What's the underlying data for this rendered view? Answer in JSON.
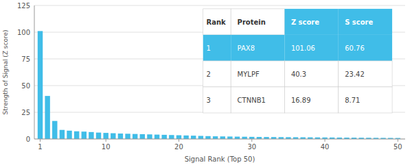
{
  "chart_data": {
    "type": "bar",
    "x": [
      1,
      2,
      3,
      4,
      5,
      6,
      7,
      8,
      9,
      10,
      11,
      12,
      13,
      14,
      15,
      16,
      17,
      18,
      19,
      20,
      21,
      22,
      23,
      24,
      25,
      26,
      27,
      28,
      29,
      30,
      31,
      32,
      33,
      34,
      35,
      36,
      37,
      38,
      39,
      40,
      41,
      42,
      43,
      44,
      45,
      46,
      47,
      48,
      49,
      50
    ],
    "values": [
      101.06,
      40.3,
      16.89,
      8.5,
      7.8,
      7.2,
      6.9,
      6.5,
      6.0,
      5.7,
      5.4,
      5.1,
      4.9,
      4.7,
      4.5,
      4.3,
      4.1,
      3.9,
      3.7,
      3.5,
      3.3,
      3.1,
      2.9,
      2.7,
      2.5,
      2.4,
      2.3,
      2.2,
      2.1,
      2.0,
      1.9,
      1.85,
      1.8,
      1.75,
      1.7,
      1.65,
      1.6,
      1.55,
      1.5,
      1.45,
      1.4,
      1.35,
      1.3,
      1.25,
      1.2,
      1.15,
      1.1,
      1.05,
      1.0,
      0.95
    ],
    "color": "#40bde8",
    "x_label": "Signal Rank (Top 50)",
    "y_label": "Strength of Signal (Z score)",
    "xlim": [
      0.2,
      51
    ],
    "xticks": [
      1,
      10,
      20,
      30,
      40,
      50
    ],
    "ylim": [
      0,
      125
    ],
    "yticks": [
      0,
      25,
      50,
      75,
      100,
      125
    ],
    "grid": true,
    "table": {
      "columns": [
        "Rank",
        "Protein",
        "Z score",
        "S score"
      ],
      "rows": [
        [
          "1",
          "PAX8",
          "101.06",
          "60.76"
        ],
        [
          "2",
          "MYLPF",
          "40.3",
          "23.42"
        ],
        [
          "3",
          "CTNNB1",
          "16.89",
          "8.71"
        ]
      ]
    }
  }
}
